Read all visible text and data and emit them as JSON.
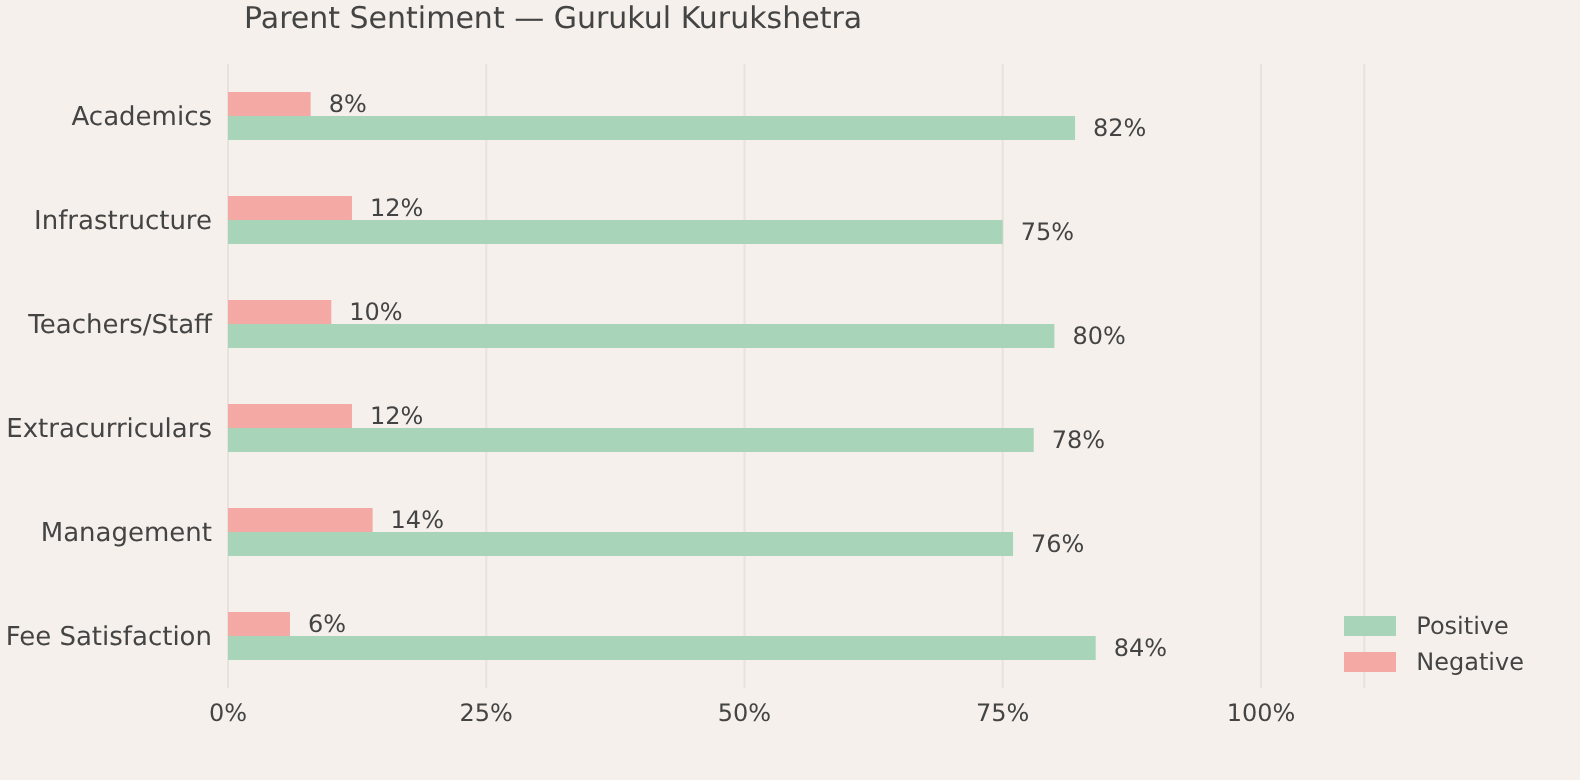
{
  "chart_data": {
    "type": "bar",
    "orientation": "horizontal",
    "title": "Parent Sentiment — Gurukul Kurukshetra",
    "categories": [
      "Academics",
      "Infrastructure",
      "Teachers/Staff",
      "Extracurriculars",
      "Management",
      "Fee Satisfaction"
    ],
    "series": [
      {
        "name": "Positive",
        "color": "#a8d5b9",
        "values": [
          82,
          75,
          80,
          78,
          76,
          84
        ],
        "value_labels": [
          "82%",
          "75%",
          "80%",
          "78%",
          "76%",
          "84%"
        ]
      },
      {
        "name": "Negative",
        "color": "#f4a9a4",
        "values": [
          8,
          12,
          10,
          12,
          14,
          6
        ],
        "value_labels": [
          "8%",
          "12%",
          "10%",
          "12%",
          "14%",
          "6%"
        ]
      }
    ],
    "xlim": [
      0,
      110
    ],
    "xticks": [
      {
        "value": 0,
        "label": "0%"
      },
      {
        "value": 25,
        "label": "25%"
      },
      {
        "value": 50,
        "label": "50%"
      },
      {
        "value": 75,
        "label": "75%"
      },
      {
        "value": 100,
        "label": "100%"
      }
    ],
    "grid": "x",
    "legend": "bottom right"
  }
}
